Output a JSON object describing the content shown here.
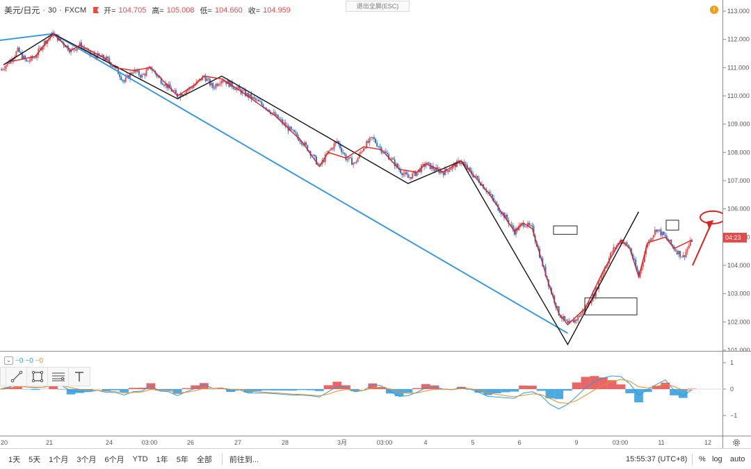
{
  "legend": {
    "symbol": "美元/日元",
    "interval": "30",
    "broker": "FXCM",
    "open_label": "开=",
    "open_value": "104.705",
    "high_label": "高=",
    "high_value": "105.008",
    "low_label": "低=",
    "low_value": "104.660",
    "close_label": "收=",
    "close_value": "104.959"
  },
  "exit_fullscreen": "退出全屏(ESC)",
  "warning_glyph": "!",
  "price_tag": "04:23",
  "price_axis": {
    "labels": [
      "113.000",
      "112.000",
      "111.000",
      "110.000",
      "109.000",
      "108.000",
      "107.000",
      "106.000",
      "105.000",
      "104.000",
      "103.000",
      "102.000",
      "101.000"
    ],
    "top_value": 113.0,
    "bottom_value": 101.0
  },
  "indicator": {
    "collapse_glyph": "⌄",
    "value1": "−0",
    "value2": "−0",
    "value3": "−0",
    "axis_labels": [
      "1",
      "0",
      "−1"
    ]
  },
  "time_axis": {
    "labels": [
      "20",
      "21",
      "24",
      "03:00",
      "26",
      "27",
      "28",
      "3月",
      "03:00",
      "4",
      "5",
      "6",
      "9",
      "03:00",
      "11",
      "12"
    ]
  },
  "bottom_bar": {
    "ranges": [
      "1天",
      "5天",
      "1个月",
      "3个月",
      "6个月",
      "YTD",
      "1年",
      "5年",
      "全部"
    ],
    "goto": "前往到...",
    "clock": "15:55:37 (UTC+8)",
    "percent": "%",
    "log": "log",
    "auto": "auto"
  },
  "colors": {
    "candle_up": "#e54b4b",
    "candle_down": "#2e6fd0",
    "zigzag_red": "#e02020",
    "zigzag_black": "#111111",
    "trend_blue": "#3a9ad9",
    "macd_blue": "#2d9bdb",
    "macd_orange": "#f08a24"
  },
  "chart_data": {
    "type": "line",
    "title": "",
    "xlabel": "",
    "ylabel": "",
    "ylim": [
      101.0,
      113.0
    ],
    "series": [
      {
        "values": [
          110.9,
          111.2,
          111.6,
          111.2,
          111.4,
          111.9,
          112.2,
          111.9,
          111.6,
          111.8,
          111.5,
          111.4,
          111.3,
          111.0,
          110.5,
          110.9,
          110.7,
          111.0,
          110.6,
          110.3,
          110.0,
          110.2,
          110.4,
          110.7,
          110.3,
          110.6,
          110.4,
          110.2,
          110.0,
          109.8,
          109.6,
          109.3,
          109.0,
          108.7,
          108.4,
          108.0,
          107.5,
          108.0,
          108.4,
          107.8,
          107.6,
          108.2,
          108.5,
          108.1,
          107.8,
          107.4,
          107.1,
          107.3,
          107.6,
          107.4,
          107.3,
          107.5,
          107.7,
          107.3,
          107.0,
          106.6,
          106.1,
          105.7,
          105.2,
          105.5,
          105.3,
          104.2,
          103.2,
          102.3,
          101.9,
          102.1,
          102.5,
          103.0,
          103.8,
          104.5,
          104.9,
          104.6,
          103.6,
          104.8,
          105.3,
          105.0,
          104.6,
          104.3,
          104.9
        ]
      }
    ]
  }
}
